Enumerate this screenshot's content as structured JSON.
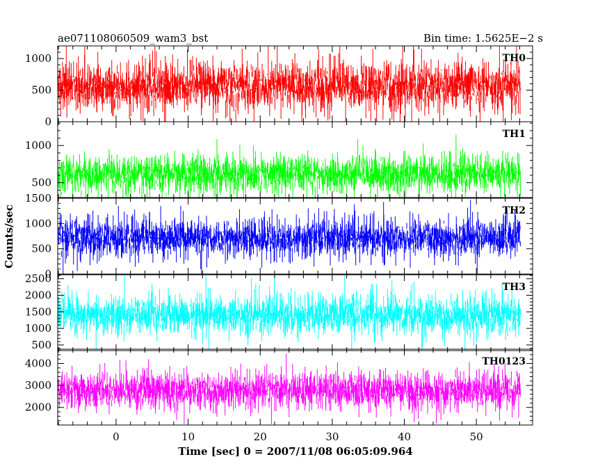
{
  "chart_data": {
    "type": "line",
    "title": "ae071108060509_wam3_bst",
    "subtitle": "Bin time: 1.5625E−2 s",
    "xlabel": "Time [sec] 0 = 2007/11/08 06:05:09.964",
    "ylabel": "Counts/sec",
    "xlim": [
      -8.1,
      57.8
    ],
    "data_x_range": [
      -8.0,
      56.1
    ],
    "bin_time": 0.015625,
    "x_ticks": [
      0,
      10,
      20,
      30,
      40,
      50
    ],
    "x_tick_labels": [
      "0",
      "10",
      "20",
      "30",
      "40",
      "50"
    ],
    "grid": false,
    "legend": "none",
    "panels": [
      {
        "name": "TH0",
        "color": "#ff0000",
        "ylim": [
          0,
          1200
        ],
        "mean": 560,
        "spread": 230,
        "y_ticks": [
          0,
          500,
          1000
        ],
        "y_tick_labels": [
          "0",
          "500",
          "1000"
        ]
      },
      {
        "name": "TH1",
        "color": "#00ff00",
        "ylim": [
          300,
          1320
        ],
        "mean": 610,
        "spread": 150,
        "y_ticks": [
          500,
          1000
        ],
        "y_tick_labels": [
          "500",
          "1000"
        ]
      },
      {
        "name": "TH2",
        "color": "#0000ff",
        "ylim": [
          0,
          1500
        ],
        "mean": 720,
        "spread": 230,
        "y_ticks": [
          0,
          500,
          1000,
          1500
        ],
        "y_tick_labels": [
          "0",
          "500",
          "1000",
          "1500"
        ]
      },
      {
        "name": "TH3",
        "color": "#00ffff",
        "ylim": [
          330,
          2620
        ],
        "mean": 1400,
        "spread": 330,
        "y_ticks": [
          500,
          1000,
          1500,
          2000,
          2500
        ],
        "y_tick_labels": [
          "500",
          "1000",
          "1500",
          "2000",
          "2500"
        ]
      },
      {
        "name": "TH0123",
        "color": "#ff00ff",
        "ylim": [
          1200,
          4650
        ],
        "mean": 2750,
        "spread": 480,
        "y_ticks": [
          2000,
          3000,
          4000
        ],
        "y_tick_labels": [
          "2000",
          "3000",
          "4000"
        ]
      }
    ]
  }
}
